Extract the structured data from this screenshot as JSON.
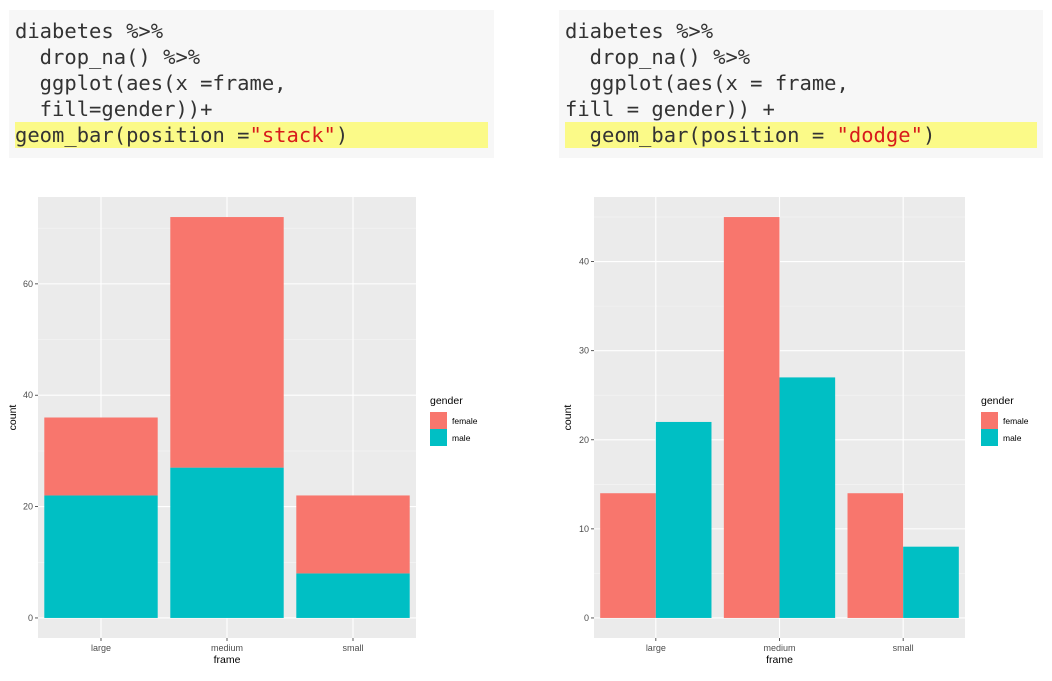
{
  "code_blocks": [
    {
      "lines": [
        {
          "text": "diabetes %>%"
        },
        {
          "text": "  drop_na() %>%"
        },
        {
          "text": "  ggplot(aes(x =frame,"
        },
        {
          "text": "  fill=gender))+"
        },
        {
          "prefix": "geom_bar(position =",
          "string": "\"stack\"",
          "suffix": ")",
          "highlight": true
        }
      ]
    },
    {
      "lines": [
        {
          "text": "diabetes %>%"
        },
        {
          "text": "  drop_na() %>%"
        },
        {
          "text": "  ggplot(aes(x = frame,"
        },
        {
          "text": "fill = gender)) +"
        },
        {
          "prefix": "  geom_bar(position = ",
          "string": "\"dodge\"",
          "suffix": ")",
          "highlight": true
        }
      ]
    }
  ],
  "colors": {
    "female": "#F8766D",
    "male": "#00BFC4",
    "panel": "#EBEBEB",
    "grid_major": "#FFFFFF",
    "grid_minor": "#F5F5F5",
    "axis_text": "#4D4D4D"
  },
  "chart_data": [
    {
      "type": "bar",
      "position": "stack",
      "xlabel": "frame",
      "ylabel": "count",
      "categories": [
        "large",
        "medium",
        "small"
      ],
      "series": [
        {
          "name": "female",
          "values": [
            14,
            45,
            14
          ]
        },
        {
          "name": "male",
          "values": [
            22,
            27,
            8
          ]
        }
      ],
      "yticks": [
        0,
        20,
        40,
        60
      ],
      "ylim": [
        -3.6,
        75.6
      ],
      "grid": true,
      "legend": {
        "title": "gender",
        "entries": [
          "female",
          "male"
        ],
        "position": "right"
      }
    },
    {
      "type": "bar",
      "position": "dodge",
      "xlabel": "frame",
      "ylabel": "count",
      "categories": [
        "large",
        "medium",
        "small"
      ],
      "series": [
        {
          "name": "female",
          "values": [
            14,
            45,
            14
          ]
        },
        {
          "name": "male",
          "values": [
            22,
            27,
            8
          ]
        }
      ],
      "yticks": [
        0,
        10,
        20,
        30,
        40
      ],
      "ylim": [
        -2.25,
        47.25
      ],
      "grid": true,
      "legend": {
        "title": "gender",
        "entries": [
          "female",
          "male"
        ],
        "position": "right"
      }
    }
  ]
}
